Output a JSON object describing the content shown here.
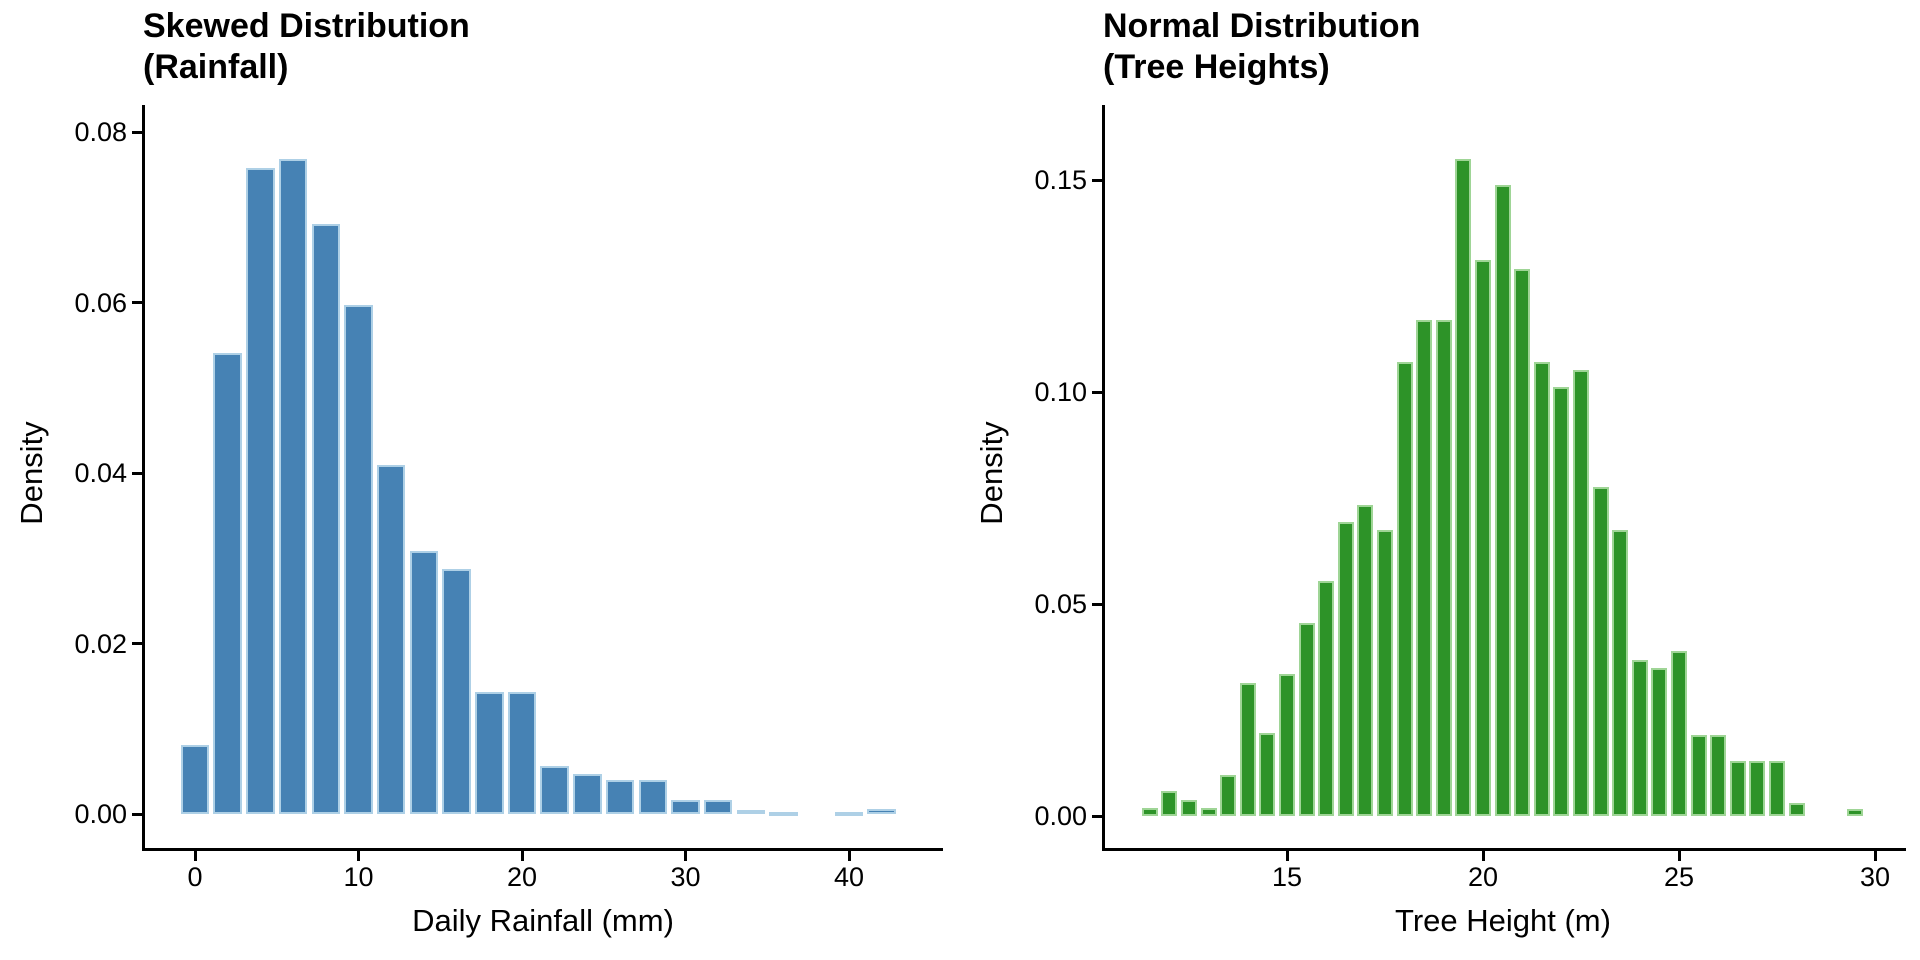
{
  "figure": {
    "background": "#ffffff"
  },
  "chart_data": [
    {
      "type": "bar",
      "title_lines": [
        "Skewed Distribution",
        "(Rainfall)"
      ],
      "xlabel": "Daily Rainfall (mm)",
      "ylabel": "Density",
      "bar_color": "#4682B4",
      "bar_border_color": "#aed0e6",
      "grid": false,
      "legend": "none",
      "bin_width": 2,
      "bin_centers": [
        0,
        2,
        4,
        6,
        8,
        10,
        12,
        14,
        16,
        18,
        20,
        22,
        24,
        26,
        28,
        30,
        32,
        34,
        36,
        38,
        40,
        42
      ],
      "values": [
        0.0081,
        0.0541,
        0.0758,
        0.0768,
        0.0692,
        0.0597,
        0.0409,
        0.0309,
        0.0288,
        0.0143,
        0.0143,
        0.0056,
        0.0047,
        0.004,
        0.004,
        0.0016,
        0.0016,
        0.0005,
        0.0002,
        0,
        0.0002,
        0.0006
      ],
      "xticks": [
        0,
        10,
        20,
        30,
        40
      ],
      "ytick_labels": [
        "0.00",
        "0.02",
        "0.04",
        "0.06",
        "0.08"
      ],
      "ytick_values": [
        0,
        0.02,
        0.04,
        0.06,
        0.08
      ],
      "xlim": [
        -3.2,
        45.8
      ],
      "ylim": [
        0,
        0.0837
      ]
    },
    {
      "type": "bar",
      "title_lines": [
        "Normal Distribution",
        "(Tree Heights)"
      ],
      "xlabel": "Tree Height (m)",
      "ylabel": "Density",
      "bar_color": "#2d9328",
      "bar_border_color": "#9fd596",
      "grid": false,
      "legend": "none",
      "bin_width": 0.5,
      "bin_centers": [
        11.5,
        12,
        12.5,
        13,
        13.5,
        14,
        14.5,
        15,
        15.5,
        16,
        16.5,
        17,
        17.5,
        18,
        18.5,
        19,
        19.5,
        20,
        20.5,
        21,
        21.5,
        22,
        22.5,
        23,
        23.5,
        24,
        24.5,
        25,
        25.5,
        26,
        26.5,
        27,
        27.5,
        28,
        28.5,
        29,
        29.5
      ],
      "values": [
        0.0019,
        0.0058,
        0.0037,
        0.0019,
        0.0096,
        0.0314,
        0.0195,
        0.0334,
        0.0455,
        0.0555,
        0.0694,
        0.0733,
        0.0674,
        0.1072,
        0.117,
        0.117,
        0.155,
        0.1311,
        0.1489,
        0.1291,
        0.1072,
        0.1011,
        0.1052,
        0.0776,
        0.0674,
        0.0369,
        0.035,
        0.0389,
        0.019,
        0.019,
        0.0131,
        0.0131,
        0.0131,
        0.0031,
        0,
        0,
        0.0016
      ],
      "xticks": [
        15,
        20,
        25,
        30
      ],
      "ytick_labels": [
        "0.00",
        "0.05",
        "0.10",
        "0.15"
      ],
      "ytick_values": [
        0,
        0.05,
        0.1,
        0.15
      ],
      "xlim": [
        10.3,
        30.7
      ],
      "ylim": [
        0,
        0.1675
      ]
    }
  ]
}
